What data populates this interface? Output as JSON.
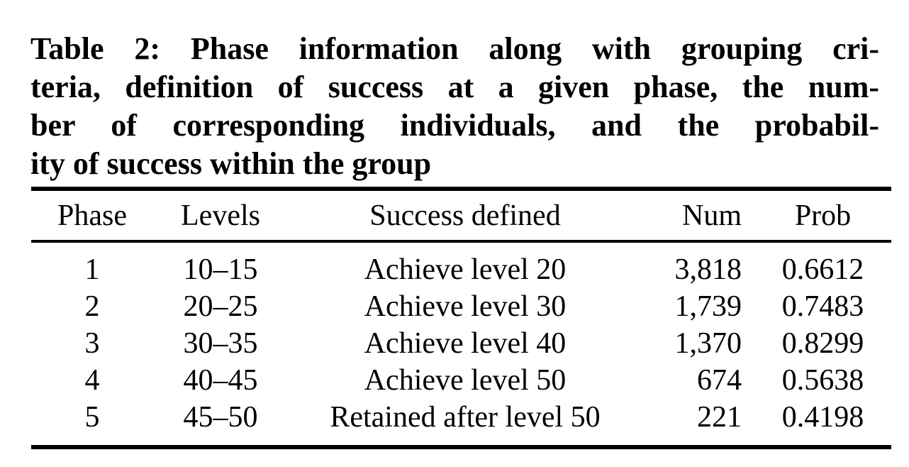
{
  "document": {
    "colors": {
      "background": "#ffffff",
      "text": "#000000",
      "rule": "#000000"
    },
    "caption": {
      "label": "Table 2:",
      "lines": [
        "Table 2:  Phase information along with grouping cri-",
        "teria, definition of success at a given phase, the num-",
        "ber of corresponding individuals, and the probabil-",
        "ity of success within the group"
      ]
    },
    "table": {
      "columns": [
        "Phase",
        "Levels",
        "Success defined",
        "Num",
        "Prob"
      ],
      "rows": [
        {
          "phase": "1",
          "levels": "10–15",
          "success": "Achieve level 20",
          "num": "3,818",
          "prob": "0.6612"
        },
        {
          "phase": "2",
          "levels": "20–25",
          "success": "Achieve level 30",
          "num": "1,739",
          "prob": "0.7483"
        },
        {
          "phase": "3",
          "levels": "30–35",
          "success": "Achieve level 40",
          "num": "1,370",
          "prob": "0.8299"
        },
        {
          "phase": "4",
          "levels": "40–45",
          "success": "Achieve level 50",
          "num": "674",
          "prob": "0.5638"
        },
        {
          "phase": "5",
          "levels": "45–50",
          "success": "Retained after level 50",
          "num": "221",
          "prob": "0.4198"
        }
      ]
    }
  }
}
